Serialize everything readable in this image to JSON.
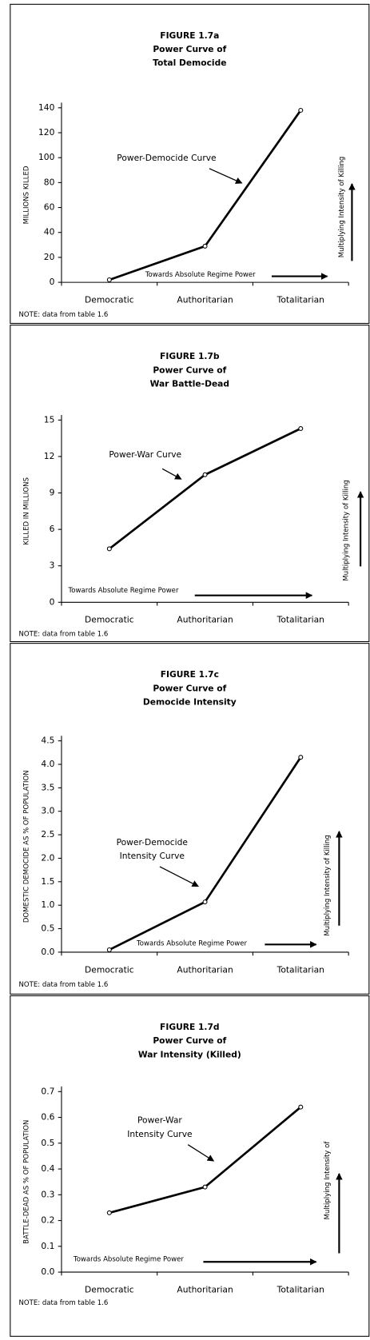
{
  "chart_data": [
    {
      "type": "line",
      "title": [
        "FIGURE 1.7a",
        "Power Curve of",
        "Total Democide"
      ],
      "ylabel": "MILLIONS KILLED",
      "categories": [
        "Democratic",
        "Authoritarian",
        "Totalitarian"
      ],
      "values": [
        2,
        29,
        138
      ],
      "color": "#000000",
      "ylim": [
        0,
        140
      ],
      "yticks": [
        0,
        20,
        40,
        60,
        80,
        100,
        120,
        140
      ],
      "curve_label": [
        "Power-Democide Curve"
      ],
      "power_label": "Towards Absolute Regime Power",
      "intensity_label": "Multiplying Intensity of Killing",
      "note": "NOTE: data from table 1.6"
    },
    {
      "type": "line",
      "title": [
        "FIGURE 1.7b",
        "Power Curve of",
        "War Battle-Dead"
      ],
      "ylabel": "KILLED IN MILLIONS",
      "categories": [
        "Democratic",
        "Authoritarian",
        "Totalitarian"
      ],
      "values": [
        4.4,
        10.5,
        14.3
      ],
      "color": "#000000",
      "ylim": [
        0,
        15
      ],
      "yticks": [
        0,
        3,
        6,
        9,
        12,
        15
      ],
      "curve_label": [
        "Power-War Curve"
      ],
      "power_label": "Towards Absolute Regime Power",
      "intensity_label": "Multiplying Intensity of Killing",
      "note": "NOTE: data from table 1.6"
    },
    {
      "type": "line",
      "title": [
        "FIGURE 1.7c",
        "Power Curve of",
        "Democide Intensity"
      ],
      "ylabel": "DOMESTIC DEMOCIDE AS % OF POPULATION",
      "categories": [
        "Democratic",
        "Authoritarian",
        "Totalitarian"
      ],
      "values": [
        0.05,
        1.07,
        4.15
      ],
      "color": "#000000",
      "ylim": [
        0,
        4.5
      ],
      "yticks": [
        {
          "value": 0,
          "label": "0.0"
        },
        0.5,
        {
          "value": 1,
          "label": "1.0"
        },
        1.5,
        {
          "value": 2,
          "label": "2.0"
        },
        2.5,
        {
          "value": 3,
          "label": "3.0"
        },
        3.5,
        {
          "value": 4,
          "label": "4.0"
        },
        4.5
      ],
      "curve_label": [
        "Power-Democide",
        "Intensity Curve"
      ],
      "power_label": "Towards Absolute Regime Power",
      "intensity_label": "Multiplying Intensity of Killing",
      "note": "NOTE: data from table 1.6"
    },
    {
      "type": "line",
      "title": [
        "FIGURE 1.7d",
        "Power Curve of",
        "War Intensity (Killed)"
      ],
      "ylabel": "BATTLE-DEAD AS % OF POPULATION",
      "categories": [
        "Democratic",
        "Authoritarian",
        "Totalitarian"
      ],
      "values": [
        0.23,
        0.33,
        0.64
      ],
      "color": "#000000",
      "ylim": [
        0,
        0.7
      ],
      "yticks": [
        {
          "value": 0,
          "label": "0.0"
        },
        0.1,
        0.2,
        0.3,
        0.4,
        0.5,
        0.6,
        0.7
      ],
      "curve_label": [
        "Power-War",
        "Intensity Curve"
      ],
      "power_label": "Towards Absolute Regime Power",
      "intensity_label": "Multiplying Intensity of",
      "note": "NOTE: data from table 1.6"
    }
  ]
}
